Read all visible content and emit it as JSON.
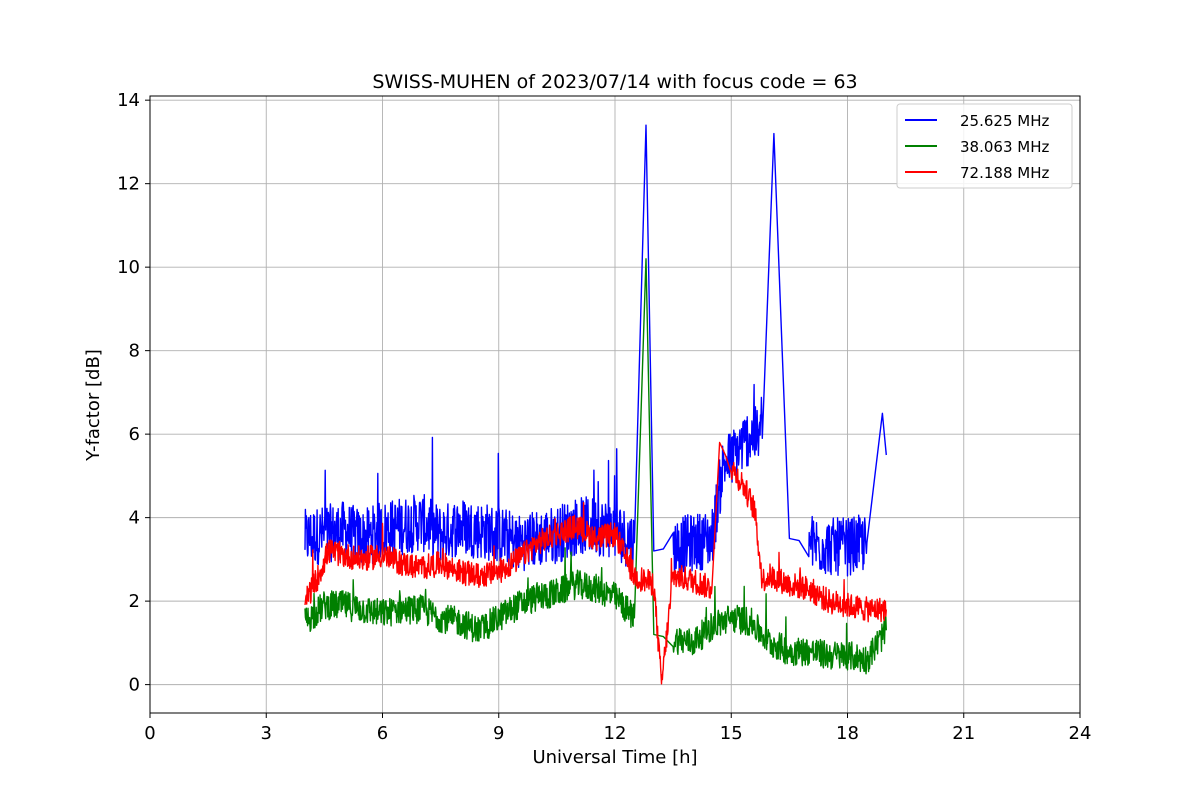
{
  "chart_data": {
    "type": "line",
    "title": "SWISS-MUHEN of 2023/07/14 with focus code = 63",
    "xlabel": "Universal Time [h]",
    "ylabel": "Y-factor [dB]",
    "xlim": [
      0,
      24
    ],
    "ylim": [
      -0.68,
      14.1
    ],
    "xticks": [
      0,
      3,
      6,
      9,
      12,
      15,
      18,
      21,
      24
    ],
    "xtick_labels": [
      "0",
      "3",
      "6",
      "9",
      "12",
      "15",
      "18",
      "21",
      "24"
    ],
    "yticks": [
      0,
      2,
      4,
      6,
      8,
      10,
      12,
      14
    ],
    "ytick_labels": [
      "0",
      "2",
      "4",
      "6",
      "8",
      "10",
      "12",
      "14"
    ],
    "grid": true,
    "legend_position": "top-right",
    "series": [
      {
        "name": "25.625 MHz",
        "color": "#0000ff",
        "x": [
          4.0,
          4.5,
          5.0,
          5.5,
          6.0,
          6.5,
          7.0,
          7.5,
          8.0,
          8.5,
          9.0,
          9.5,
          10.0,
          10.5,
          11.0,
          11.5,
          12.0,
          12.5,
          12.8,
          13.0,
          13.5,
          14.0,
          14.5,
          14.8,
          15.0,
          15.5,
          15.8,
          16.1,
          16.5,
          17.0,
          17.5,
          18.0,
          18.5,
          18.9,
          19.0
        ],
        "y": [
          3.5,
          3.6,
          3.7,
          3.5,
          3.7,
          3.8,
          3.9,
          3.6,
          3.8,
          3.7,
          3.6,
          3.4,
          3.5,
          3.6,
          3.8,
          3.8,
          3.7,
          3.4,
          13.4,
          3.2,
          3.3,
          3.4,
          3.5,
          5.3,
          5.4,
          6.0,
          5.9,
          13.2,
          3.5,
          3.4,
          3.3,
          3.3,
          3.4,
          6.5,
          5.5
        ],
        "noise": 0.7
      },
      {
        "name": "38.063 MHz",
        "color": "#008000",
        "x": [
          4.0,
          4.5,
          5.0,
          5.5,
          6.0,
          6.5,
          7.0,
          7.5,
          8.0,
          8.5,
          9.0,
          9.5,
          10.0,
          10.5,
          11.0,
          11.5,
          12.0,
          12.5,
          12.8,
          13.0,
          13.5,
          14.0,
          14.5,
          15.0,
          15.5,
          16.0,
          16.5,
          17.0,
          17.5,
          18.0,
          18.5,
          19.0
        ],
        "y": [
          1.5,
          1.9,
          1.9,
          1.8,
          1.7,
          1.8,
          1.8,
          1.6,
          1.5,
          1.3,
          1.6,
          1.9,
          2.1,
          2.2,
          2.4,
          2.3,
          2.1,
          1.6,
          10.2,
          1.2,
          1.1,
          1.0,
          1.4,
          1.6,
          1.5,
          1.0,
          0.8,
          0.8,
          0.7,
          0.7,
          0.6,
          1.3
        ],
        "noise": 0.35
      },
      {
        "name": "72.188 MHz",
        "color": "#ff0000",
        "x": [
          4.0,
          4.3,
          4.6,
          5.0,
          5.5,
          6.0,
          6.5,
          7.0,
          7.5,
          8.0,
          8.5,
          9.0,
          9.5,
          10.0,
          10.5,
          11.0,
          11.5,
          12.0,
          12.5,
          13.0,
          13.2,
          13.5,
          14.0,
          14.5,
          14.7,
          15.0,
          15.3,
          15.6,
          15.8,
          16.0,
          16.5,
          17.0,
          17.5,
          18.0,
          18.5,
          19.0
        ],
        "y": [
          2.0,
          2.5,
          3.2,
          3.1,
          3.0,
          3.1,
          2.9,
          2.8,
          2.9,
          2.7,
          2.6,
          2.7,
          3.0,
          3.4,
          3.6,
          3.8,
          3.5,
          3.6,
          2.6,
          2.4,
          0.0,
          2.6,
          2.5,
          2.3,
          5.8,
          5.2,
          4.8,
          4.2,
          2.5,
          2.6,
          2.4,
          2.3,
          2.0,
          1.9,
          1.8,
          1.8
        ],
        "noise": 0.3
      }
    ]
  }
}
